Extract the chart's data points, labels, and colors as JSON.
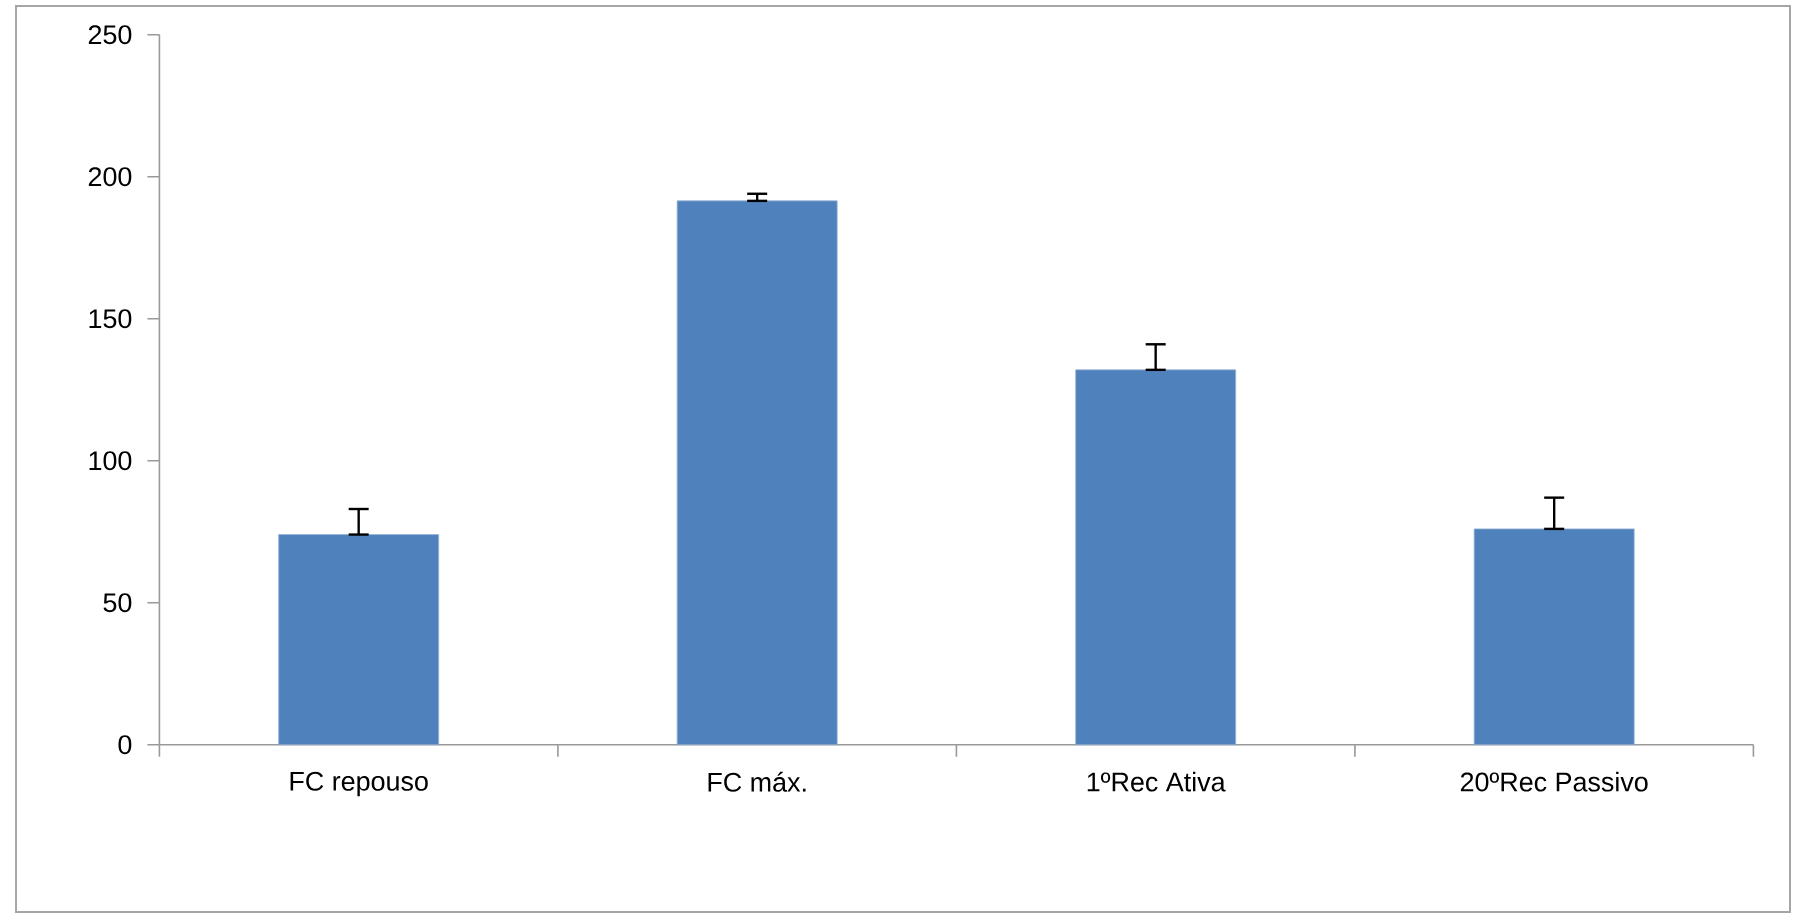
{
  "chart_data": {
    "type": "bar",
    "categories": [
      "FC repouso",
      "FC máx.",
      "1ºRec Ativa",
      "20ºRec Passivo"
    ],
    "values": [
      74,
      191.5,
      132,
      76
    ],
    "errors": [
      [
        74,
        83
      ],
      [
        191.5,
        194
      ],
      [
        132,
        141
      ],
      [
        76,
        87
      ]
    ],
    "color": "#4f81bd",
    "ylim": [
      0,
      250
    ],
    "yticks": [
      0,
      50,
      100,
      150,
      200,
      250
    ],
    "grid": false,
    "legend": false
  }
}
